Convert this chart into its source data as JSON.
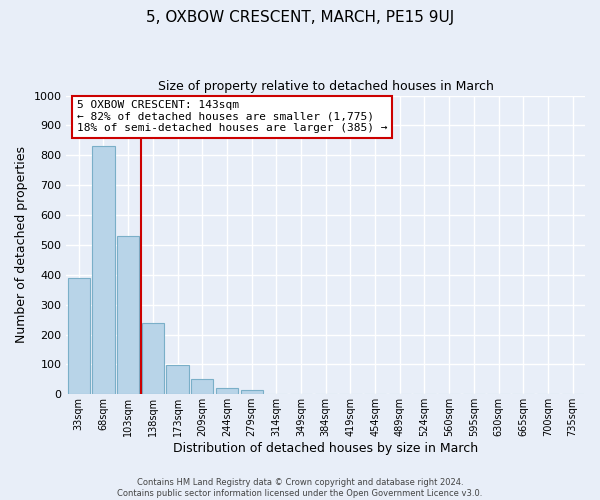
{
  "title": "5, OXBOW CRESCENT, MARCH, PE15 9UJ",
  "subtitle": "Size of property relative to detached houses in March",
  "xlabel": "Distribution of detached houses by size in March",
  "ylabel": "Number of detached properties",
  "bar_labels": [
    "33sqm",
    "68sqm",
    "103sqm",
    "138sqm",
    "173sqm",
    "209sqm",
    "244sqm",
    "279sqm",
    "314sqm",
    "349sqm",
    "384sqm",
    "419sqm",
    "454sqm",
    "489sqm",
    "524sqm",
    "560sqm",
    "595sqm",
    "630sqm",
    "665sqm",
    "700sqm",
    "735sqm"
  ],
  "bar_values": [
    390,
    830,
    530,
    240,
    97,
    52,
    22,
    13,
    0,
    0,
    0,
    0,
    0,
    0,
    0,
    0,
    0,
    0,
    0,
    0,
    0
  ],
  "bar_color": "#b8d4e8",
  "bar_edge_color": "#7aafc8",
  "vline_color": "#cc0000",
  "annotation_title": "5 OXBOW CRESCENT: 143sqm",
  "annotation_line1": "← 82% of detached houses are smaller (1,775)",
  "annotation_line2": "18% of semi-detached houses are larger (385) →",
  "annotation_box_color": "#ffffff",
  "annotation_border_color": "#cc0000",
  "ylim": [
    0,
    1000
  ],
  "yticks": [
    0,
    100,
    200,
    300,
    400,
    500,
    600,
    700,
    800,
    900,
    1000
  ],
  "background_color": "#e8eef8",
  "grid_color": "#ffffff",
  "footer_line1": "Contains HM Land Registry data © Crown copyright and database right 2024.",
  "footer_line2": "Contains public sector information licensed under the Open Government Licence v3.0."
}
